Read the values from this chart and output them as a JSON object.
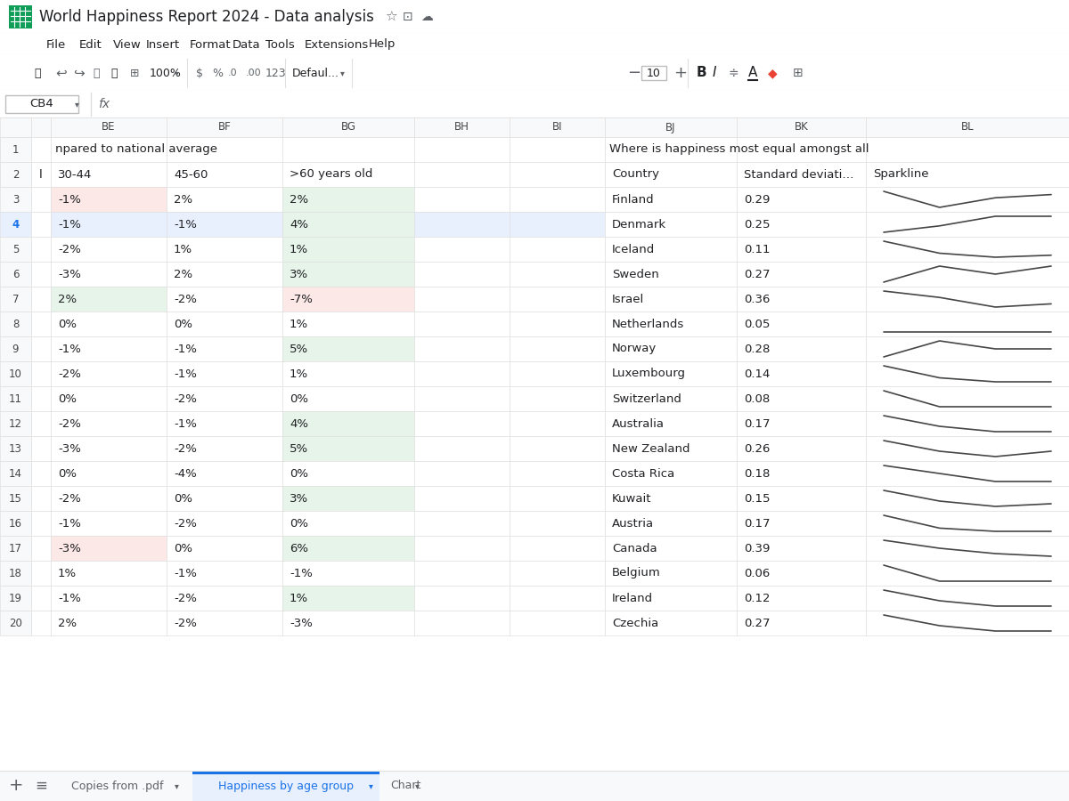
{
  "title": "World Happiness Report 2024 - Data analysis",
  "selected_row": 4,
  "selected_row_bg": "#e8f0fe",
  "selected_row_num_color": "#1a73e8",
  "left_section": {
    "cell_colors": {
      "3_BE": "#fce8e6",
      "3_BG": "#e6f4ea",
      "4_BG": "#e6f4ea",
      "5_BG": "#e6f4ea",
      "6_BG": "#e6f4ea",
      "7_BE": "#e6f4ea",
      "7_BG": "#fce8e6",
      "9_BG": "#e6f4ea",
      "12_BG": "#e6f4ea",
      "13_BG": "#e6f4ea",
      "15_BG": "#e6f4ea",
      "17_BE": "#fce8e6",
      "17_BG": "#e6f4ea",
      "19_BG": "#e6f4ea"
    },
    "rows": [
      [
        3,
        "-1%",
        "2%",
        "2%"
      ],
      [
        4,
        "-1%",
        "-1%",
        "4%"
      ],
      [
        5,
        "-2%",
        "1%",
        "1%"
      ],
      [
        6,
        "-3%",
        "2%",
        "3%"
      ],
      [
        7,
        "2%",
        "-2%",
        "-7%"
      ],
      [
        8,
        "0%",
        "0%",
        "1%"
      ],
      [
        9,
        "-1%",
        "-1%",
        "5%"
      ],
      [
        10,
        "-2%",
        "-1%",
        "1%"
      ],
      [
        11,
        "0%",
        "-2%",
        "0%"
      ],
      [
        12,
        "-2%",
        "-1%",
        "4%"
      ],
      [
        13,
        "-3%",
        "-2%",
        "5%"
      ],
      [
        14,
        "0%",
        "-4%",
        "0%"
      ],
      [
        15,
        "-2%",
        "0%",
        "3%"
      ],
      [
        16,
        "-1%",
        "-2%",
        "0%"
      ],
      [
        17,
        "-3%",
        "0%",
        "6%"
      ],
      [
        18,
        "1%",
        "-1%",
        "-1%"
      ],
      [
        19,
        "-1%",
        "-2%",
        "1%"
      ],
      [
        20,
        "2%",
        "-2%",
        "-3%"
      ]
    ]
  },
  "right_section": {
    "rows": [
      [
        3,
        "Finland",
        "0.29"
      ],
      [
        4,
        "Denmark",
        "0.25"
      ],
      [
        5,
        "Iceland",
        "0.11"
      ],
      [
        6,
        "Sweden",
        "0.27"
      ],
      [
        7,
        "Israel",
        "0.36"
      ],
      [
        8,
        "Netherlands",
        "0.05"
      ],
      [
        9,
        "Norway",
        "0.28"
      ],
      [
        10,
        "Luxembourg",
        "0.14"
      ],
      [
        11,
        "Switzerland",
        "0.08"
      ],
      [
        12,
        "Australia",
        "0.17"
      ],
      [
        13,
        "New Zealand",
        "0.26"
      ],
      [
        14,
        "Costa Rica",
        "0.18"
      ],
      [
        15,
        "Kuwait",
        "0.15"
      ],
      [
        16,
        "Austria",
        "0.17"
      ],
      [
        17,
        "Canada",
        "0.39"
      ],
      [
        18,
        "Belgium",
        "0.06"
      ],
      [
        19,
        "Ireland",
        "0.12"
      ],
      [
        20,
        "Czechia",
        "0.27"
      ]
    ],
    "sparklines": [
      [
        0.3,
        0.25,
        0.28,
        0.29
      ],
      [
        0.2,
        0.22,
        0.25,
        0.25
      ],
      [
        0.18,
        0.12,
        0.1,
        0.11
      ],
      [
        0.25,
        0.27,
        0.26,
        0.27
      ],
      [
        0.4,
        0.38,
        0.35,
        0.36
      ],
      [
        0.05,
        0.05,
        0.05,
        0.05
      ],
      [
        0.27,
        0.29,
        0.28,
        0.28
      ],
      [
        0.18,
        0.15,
        0.14,
        0.14
      ],
      [
        0.09,
        0.08,
        0.08,
        0.08
      ],
      [
        0.2,
        0.18,
        0.17,
        0.17
      ],
      [
        0.28,
        0.26,
        0.25,
        0.26
      ],
      [
        0.22,
        0.2,
        0.18,
        0.18
      ],
      [
        0.2,
        0.16,
        0.14,
        0.15
      ],
      [
        0.22,
        0.18,
        0.17,
        0.17
      ],
      [
        0.45,
        0.42,
        0.4,
        0.39
      ],
      [
        0.07,
        0.06,
        0.06,
        0.06
      ],
      [
        0.15,
        0.13,
        0.12,
        0.12
      ],
      [
        0.3,
        0.28,
        0.27,
        0.27
      ]
    ]
  }
}
